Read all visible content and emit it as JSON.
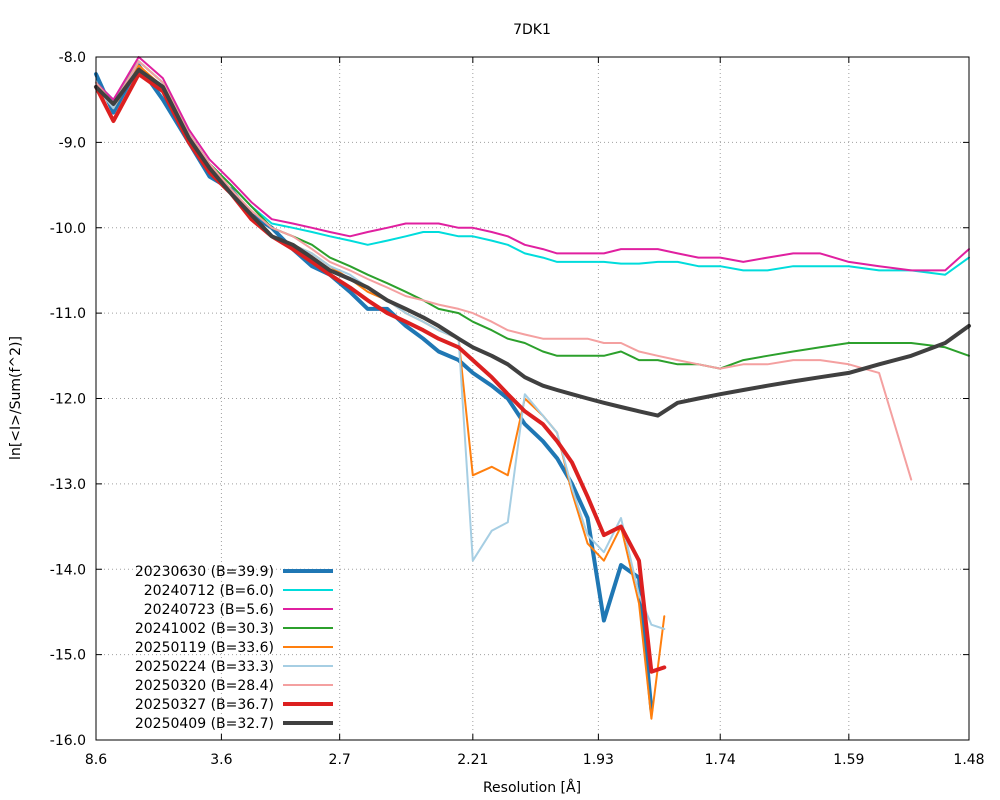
{
  "chart_data": {
    "type": "line",
    "title": "7DK1",
    "xlabel": "Resolution [Å]",
    "ylabel": "ln[<I>/Sum(f^2)]",
    "x_scale": "inverse-square-resolution",
    "xlim": [
      8.6,
      1.48
    ],
    "ylim": [
      -16.0,
      -8.0
    ],
    "x_ticks": [
      {
        "value": 8.6,
        "label": "8.6"
      },
      {
        "value": 3.6,
        "label": "3.6"
      },
      {
        "value": 2.7,
        "label": "2.7"
      },
      {
        "value": 2.21,
        "label": "2.21"
      },
      {
        "value": 1.93,
        "label": "1.93"
      },
      {
        "value": 1.74,
        "label": "1.74"
      },
      {
        "value": 1.59,
        "label": "1.59"
      },
      {
        "value": 1.48,
        "label": "1.48"
      }
    ],
    "y_ticks": [
      {
        "value": -8.0,
        "label": "-8.0"
      },
      {
        "value": -9.0,
        "label": "-9.0"
      },
      {
        "value": -10.0,
        "label": "-10.0"
      },
      {
        "value": -11.0,
        "label": "-11.0"
      },
      {
        "value": -12.0,
        "label": "-12.0"
      },
      {
        "value": -13.0,
        "label": "-13.0"
      },
      {
        "value": -14.0,
        "label": "-14.0"
      },
      {
        "value": -15.0,
        "label": "-15.0"
      },
      {
        "value": -16.0,
        "label": "-16.0"
      }
    ],
    "grid": true,
    "legend_position": "bottom-left",
    "series": [
      {
        "name": "20230630 (B=39.9)",
        "color": "#1f77b4",
        "width": 4,
        "x": [
          8.6,
          6.69,
          5.33,
          4.59,
          4.06,
          3.75,
          3.49,
          3.29,
          3.12,
          2.97,
          2.85,
          2.75,
          2.65,
          2.57,
          2.49,
          2.42,
          2.36,
          2.31,
          2.25,
          2.21,
          2.16,
          2.12,
          2.08,
          2.04,
          2.01,
          1.98,
          1.95,
          1.92,
          1.89,
          1.86,
          1.84
        ],
        "y": [
          -8.2,
          -8.65,
          -8.1,
          -8.5,
          -9.0,
          -9.4,
          -9.55,
          -9.85,
          -10.0,
          -10.25,
          -10.45,
          -10.55,
          -10.75,
          -10.95,
          -10.95,
          -11.15,
          -11.3,
          -11.45,
          -11.55,
          -11.7,
          -11.85,
          -12.0,
          -12.3,
          -12.5,
          -12.7,
          -13.0,
          -13.4,
          -14.6,
          -13.95,
          -14.1,
          -15.65
        ]
      },
      {
        "name": "20240712 (B=6.0)",
        "color": "#00dcdc",
        "width": 2,
        "x": [
          8.6,
          6.69,
          5.33,
          4.59,
          4.06,
          3.75,
          3.49,
          3.29,
          3.12,
          2.97,
          2.85,
          2.75,
          2.65,
          2.57,
          2.49,
          2.42,
          2.36,
          2.31,
          2.25,
          2.21,
          2.16,
          2.12,
          2.08,
          2.04,
          2.01,
          1.98,
          1.95,
          1.92,
          1.89,
          1.86,
          1.83,
          1.8,
          1.77,
          1.74,
          1.71,
          1.68,
          1.65,
          1.62,
          1.59,
          1.56,
          1.53,
          1.5,
          1.48
        ],
        "y": [
          -8.3,
          -8.5,
          -8.05,
          -8.3,
          -8.9,
          -9.25,
          -9.5,
          -9.75,
          -9.95,
          -10.0,
          -10.05,
          -10.1,
          -10.15,
          -10.2,
          -10.15,
          -10.1,
          -10.05,
          -10.05,
          -10.1,
          -10.1,
          -10.15,
          -10.2,
          -10.3,
          -10.35,
          -10.4,
          -10.4,
          -10.4,
          -10.4,
          -10.42,
          -10.42,
          -10.4,
          -10.4,
          -10.45,
          -10.45,
          -10.5,
          -10.5,
          -10.45,
          -10.45,
          -10.45,
          -10.5,
          -10.5,
          -10.55,
          -10.35
        ]
      },
      {
        "name": "20240723 (B=5.6)",
        "color": "#e020a0",
        "width": 2,
        "x": [
          8.6,
          6.69,
          5.33,
          4.59,
          4.06,
          3.75,
          3.49,
          3.29,
          3.12,
          2.97,
          2.85,
          2.75,
          2.65,
          2.57,
          2.49,
          2.42,
          2.36,
          2.31,
          2.25,
          2.21,
          2.16,
          2.12,
          2.08,
          2.04,
          2.01,
          1.98,
          1.95,
          1.92,
          1.89,
          1.86,
          1.83,
          1.8,
          1.77,
          1.74,
          1.71,
          1.68,
          1.65,
          1.62,
          1.59,
          1.56,
          1.53,
          1.5,
          1.48
        ],
        "y": [
          -8.3,
          -8.5,
          -8.0,
          -8.25,
          -8.85,
          -9.2,
          -9.45,
          -9.7,
          -9.9,
          -9.95,
          -10.0,
          -10.05,
          -10.1,
          -10.05,
          -10.0,
          -9.95,
          -9.95,
          -9.95,
          -10.0,
          -10.0,
          -10.05,
          -10.1,
          -10.2,
          -10.25,
          -10.3,
          -10.3,
          -10.3,
          -10.3,
          -10.25,
          -10.25,
          -10.25,
          -10.3,
          -10.35,
          -10.35,
          -10.4,
          -10.35,
          -10.3,
          -10.3,
          -10.4,
          -10.45,
          -10.5,
          -10.5,
          -10.25
        ]
      },
      {
        "name": "20241002 (B=30.3)",
        "color": "#2ca02c",
        "width": 2,
        "x": [
          8.6,
          6.69,
          5.33,
          4.59,
          4.06,
          3.75,
          3.49,
          3.29,
          3.12,
          2.97,
          2.85,
          2.75,
          2.65,
          2.57,
          2.49,
          2.42,
          2.36,
          2.31,
          2.25,
          2.21,
          2.16,
          2.12,
          2.08,
          2.04,
          2.01,
          1.98,
          1.95,
          1.92,
          1.89,
          1.86,
          1.83,
          1.8,
          1.77,
          1.74,
          1.71,
          1.68,
          1.65,
          1.62,
          1.59,
          1.56,
          1.53,
          1.5,
          1.48
        ],
        "y": [
          -8.3,
          -8.55,
          -8.05,
          -8.3,
          -8.9,
          -9.25,
          -9.5,
          -9.75,
          -10.0,
          -10.1,
          -10.2,
          -10.35,
          -10.45,
          -10.55,
          -10.65,
          -10.75,
          -10.85,
          -10.95,
          -11.0,
          -11.1,
          -11.2,
          -11.3,
          -11.35,
          -11.45,
          -11.5,
          -11.5,
          -11.5,
          -11.5,
          -11.45,
          -11.55,
          -11.55,
          -11.6,
          -11.6,
          -11.65,
          -11.55,
          -11.5,
          -11.45,
          -11.4,
          -11.35,
          -11.35,
          -11.35,
          -11.4,
          -11.5
        ]
      },
      {
        "name": "20250119 (B=33.6)",
        "color": "#ff7f0e",
        "width": 2,
        "x": [
          8.6,
          6.69,
          5.33,
          4.59,
          4.06,
          3.75,
          3.49,
          3.29,
          3.12,
          2.97,
          2.85,
          2.75,
          2.65,
          2.57,
          2.49,
          2.42,
          2.36,
          2.31,
          2.25,
          2.21,
          2.16,
          2.12,
          2.08,
          2.04,
          2.01,
          1.98,
          1.95,
          1.92,
          1.89,
          1.86,
          1.84,
          1.82
        ],
        "y": [
          -8.35,
          -8.6,
          -8.1,
          -8.35,
          -8.95,
          -9.3,
          -9.6,
          -9.85,
          -10.1,
          -10.2,
          -10.3,
          -10.45,
          -10.6,
          -10.75,
          -10.85,
          -11.0,
          -11.1,
          -11.2,
          -11.3,
          -12.9,
          -12.8,
          -12.9,
          -12.0,
          -12.2,
          -12.4,
          -13.1,
          -13.7,
          -13.9,
          -13.5,
          -14.4,
          -15.75,
          -14.55
        ]
      },
      {
        "name": "20250224 (B=33.3)",
        "color": "#a6cee3",
        "width": 2,
        "x": [
          8.6,
          6.69,
          5.33,
          4.59,
          4.06,
          3.75,
          3.49,
          3.29,
          3.12,
          2.97,
          2.85,
          2.75,
          2.65,
          2.57,
          2.49,
          2.42,
          2.36,
          2.31,
          2.25,
          2.21,
          2.16,
          2.12,
          2.08,
          2.04,
          2.01,
          1.98,
          1.95,
          1.92,
          1.89,
          1.86,
          1.84,
          1.82
        ],
        "y": [
          -8.35,
          -8.6,
          -8.05,
          -8.3,
          -8.95,
          -9.3,
          -9.6,
          -9.85,
          -10.1,
          -10.2,
          -10.3,
          -10.45,
          -10.55,
          -10.7,
          -10.85,
          -11.0,
          -11.1,
          -11.2,
          -11.3,
          -13.9,
          -13.55,
          -13.45,
          -11.95,
          -12.2,
          -12.4,
          -13.05,
          -13.6,
          -13.8,
          -13.4,
          -14.3,
          -14.65,
          -14.7
        ]
      },
      {
        "name": "20250320 (B=28.4)",
        "color": "#f4a0a0",
        "width": 2,
        "x": [
          8.6,
          6.69,
          5.33,
          4.59,
          4.06,
          3.75,
          3.49,
          3.29,
          3.12,
          2.97,
          2.85,
          2.75,
          2.65,
          2.57,
          2.49,
          2.42,
          2.36,
          2.31,
          2.25,
          2.21,
          2.16,
          2.12,
          2.08,
          2.04,
          2.01,
          1.98,
          1.95,
          1.92,
          1.89,
          1.86,
          1.83,
          1.8,
          1.77,
          1.74,
          1.71,
          1.68,
          1.65,
          1.62,
          1.59,
          1.56,
          1.53
        ],
        "y": [
          -8.3,
          -8.55,
          -8.05,
          -8.3,
          -8.9,
          -9.25,
          -9.55,
          -9.8,
          -10.0,
          -10.1,
          -10.25,
          -10.4,
          -10.5,
          -10.6,
          -10.7,
          -10.8,
          -10.85,
          -10.9,
          -10.95,
          -11.0,
          -11.1,
          -11.2,
          -11.25,
          -11.3,
          -11.3,
          -11.3,
          -11.3,
          -11.35,
          -11.35,
          -11.45,
          -11.5,
          -11.55,
          -11.6,
          -11.65,
          -11.6,
          -11.6,
          -11.55,
          -11.55,
          -11.6,
          -11.7,
          -12.95
        ]
      },
      {
        "name": "20250327 (B=36.7)",
        "color": "#dc2020",
        "width": 4,
        "x": [
          8.6,
          6.69,
          5.33,
          4.59,
          4.06,
          3.75,
          3.49,
          3.29,
          3.12,
          2.97,
          2.85,
          2.75,
          2.65,
          2.57,
          2.49,
          2.42,
          2.36,
          2.31,
          2.25,
          2.21,
          2.16,
          2.12,
          2.08,
          2.04,
          2.01,
          1.98,
          1.95,
          1.92,
          1.89,
          1.86,
          1.84,
          1.82
        ],
        "y": [
          -8.35,
          -8.75,
          -8.2,
          -8.4,
          -9.0,
          -9.35,
          -9.6,
          -9.9,
          -10.1,
          -10.25,
          -10.4,
          -10.55,
          -10.7,
          -10.85,
          -11.0,
          -11.1,
          -11.2,
          -11.3,
          -11.4,
          -11.55,
          -11.75,
          -11.95,
          -12.15,
          -12.3,
          -12.5,
          -12.75,
          -13.15,
          -13.6,
          -13.5,
          -13.9,
          -15.2,
          -15.15
        ]
      },
      {
        "name": "20250409 (B=32.7)",
        "color": "#404040",
        "width": 4,
        "x": [
          8.6,
          6.69,
          5.33,
          4.59,
          4.06,
          3.75,
          3.49,
          3.29,
          3.12,
          2.97,
          2.85,
          2.75,
          2.65,
          2.57,
          2.49,
          2.42,
          2.36,
          2.31,
          2.25,
          2.21,
          2.16,
          2.12,
          2.08,
          2.04,
          2.01,
          1.98,
          1.95,
          1.92,
          1.89,
          1.86,
          1.83,
          1.8,
          1.77,
          1.74,
          1.71,
          1.68,
          1.65,
          1.62,
          1.59,
          1.56,
          1.53,
          1.5,
          1.48
        ],
        "y": [
          -8.35,
          -8.55,
          -8.15,
          -8.35,
          -8.95,
          -9.3,
          -9.6,
          -9.85,
          -10.1,
          -10.2,
          -10.35,
          -10.5,
          -10.6,
          -10.7,
          -10.85,
          -10.95,
          -11.05,
          -11.15,
          -11.3,
          -11.4,
          -11.5,
          -11.6,
          -11.75,
          -11.85,
          -11.9,
          -11.95,
          -12.0,
          -12.05,
          -12.1,
          -12.15,
          -12.2,
          -12.05,
          -12.0,
          -11.95,
          -11.9,
          -11.85,
          -11.8,
          -11.75,
          -11.7,
          -11.6,
          -11.5,
          -11.35,
          -11.15
        ]
      }
    ]
  }
}
